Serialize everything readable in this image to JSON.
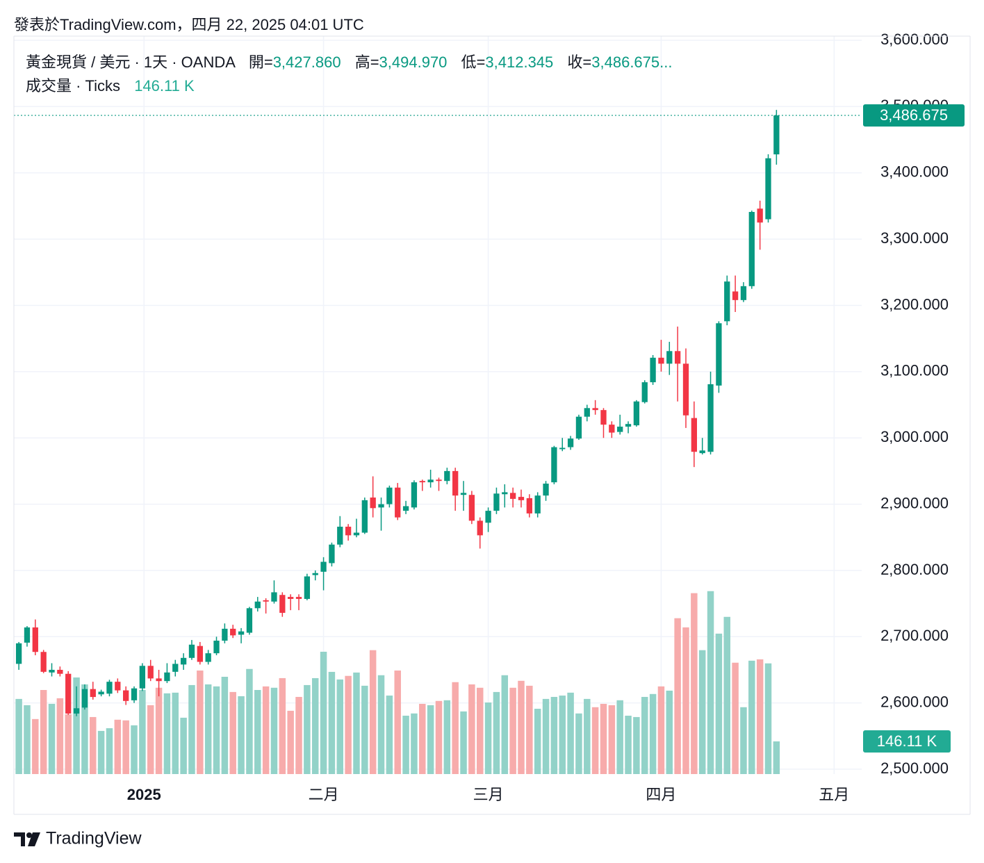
{
  "chart_data": {
    "type": "candlestick",
    "source": "發表於TradingView.com，四月 22, 2025 04:01 UTC",
    "symbol": "黃金現貨 / 美元 · 1天 · OANDA",
    "legend": {
      "open": {
        "name": "開=",
        "label": "3,427.860"
      },
      "high": {
        "name": "高=",
        "label": "3,494.970"
      },
      "low": {
        "name": "低=",
        "label": "3,412.345"
      },
      "close": {
        "name": "收=",
        "label": "3,486.675..."
      }
    },
    "volume_name": "成交量 · Ticks",
    "volume_label": "146.11 K",
    "close_label": "3,486.675",
    "brand": "TradingView",
    "up_color": "#089981",
    "down_color": "#f23645",
    "up_volume_color": "#92d2c8",
    "down_volume_color": "#f7abab",
    "open": [
      2659,
      2691,
      2714,
      2677,
      2646,
      2650,
      2644,
      2584,
      2593,
      2621,
      2613,
      2614,
      2632,
      2619,
      2604,
      2622,
      2656,
      2637,
      2633,
      2647,
      2658,
      2668,
      2686,
      2662,
      2675,
      2694,
      2712,
      2703,
      2706,
      2743,
      2755,
      2753,
      2763,
      2760,
      2760,
      2757,
      2793,
      2798,
      2811,
      2839,
      2866,
      2853,
      2857,
      2910,
      2895,
      2900,
      2925,
      2890,
      2895,
      2935,
      2933,
      2937,
      2935,
      2950,
      2914,
      2914,
      2875,
      2872,
      2890,
      2915,
      2917,
      2911,
      2909,
      2886,
      2913,
      2933,
      2983,
      2986,
      2999,
      3032,
      3045,
      3042,
      3020,
      3009,
      3017,
      3019,
      3054,
      3084,
      3121,
      3112,
      3131,
      3112,
      3030,
      2977,
      2979,
      3079,
      3176,
      3221,
      3208,
      3229,
      3346,
      3330,
      3427.86
    ],
    "high": [
      2692,
      2716,
      2726,
      2680,
      2660,
      2655,
      2648,
      2625,
      2628,
      2632,
      2620,
      2635,
      2637,
      2625,
      2625,
      2660,
      2665,
      2650,
      2660,
      2665,
      2675,
      2695,
      2692,
      2680,
      2700,
      2720,
      2718,
      2713,
      2745,
      2760,
      2758,
      2785,
      2767,
      2764,
      2764,
      2795,
      2800,
      2820,
      2842,
      2882,
      2870,
      2878,
      2910,
      2942,
      2910,
      2928,
      2932,
      2905,
      2936,
      2937,
      2952,
      2940,
      2955,
      2955,
      2935,
      2920,
      2880,
      2895,
      2925,
      2930,
      2925,
      2922,
      2915,
      2918,
      2935,
      2988,
      3000,
      3003,
      3035,
      3050,
      3057,
      3045,
      3025,
      3035,
      3025,
      3057,
      3087,
      3125,
      3148,
      3145,
      3168,
      3135,
      3055,
      3000,
      3100,
      3176,
      3245,
      3245,
      3235,
      3343,
      3358,
      3428,
      3494.97
    ],
    "low": [
      2650,
      2685,
      2672,
      2645,
      2640,
      2640,
      2582,
      2580,
      2590,
      2605,
      2610,
      2610,
      2615,
      2597,
      2600,
      2618,
      2633,
      2610,
      2630,
      2640,
      2650,
      2665,
      2658,
      2658,
      2672,
      2690,
      2698,
      2690,
      2703,
      2738,
      2735,
      2750,
      2730,
      2740,
      2740,
      2755,
      2785,
      2770,
      2806,
      2835,
      2845,
      2850,
      2855,
      2880,
      2860,
      2895,
      2876,
      2885,
      2892,
      2920,
      2925,
      2920,
      2930,
      2890,
      2890,
      2870,
      2833,
      2858,
      2885,
      2895,
      2895,
      2895,
      2880,
      2880,
      2905,
      2930,
      2980,
      2982,
      2997,
      3025,
      3035,
      3000,
      3000,
      3005,
      3007,
      3017,
      3052,
      3080,
      3100,
      3095,
      3055,
      3015,
      2956,
      2975,
      2975,
      3068,
      3170,
      3190,
      3205,
      3225,
      3284,
      3325,
      3412.345
    ],
    "close": [
      2690,
      2714,
      2677,
      2647,
      2650,
      2644,
      2584,
      2592,
      2621,
      2609,
      2617,
      2632,
      2619,
      2603,
      2622,
      2656,
      2637,
      2633,
      2646,
      2659,
      2668,
      2688,
      2662,
      2675,
      2694,
      2712,
      2702,
      2708,
      2743,
      2753,
      2753,
      2767,
      2736,
      2757,
      2757,
      2791,
      2796,
      2813,
      2839,
      2866,
      2853,
      2857,
      2906,
      2894,
      2900,
      2925,
      2880,
      2897,
      2933,
      2933,
      2937,
      2935,
      2950,
      2913,
      2917,
      2875,
      2853,
      2890,
      2916,
      2918,
      2908,
      2906,
      2886,
      2913,
      2931,
      2986,
      2985,
      2999,
      3032,
      3045,
      3042,
      3020,
      3008,
      3017,
      3021,
      3055,
      3084,
      3121,
      3112,
      3131,
      3112,
      3034,
      2979,
      2981,
      3081,
      3173,
      3236,
      3208,
      3229,
      3341,
      3325,
      3422,
      3486.675
    ],
    "volume": [
      336,
      308,
      246,
      376,
      314,
      339,
      267,
      432,
      401,
      255,
      193,
      205,
      243,
      240,
      218,
      376,
      308,
      386,
      361,
      364,
      252,
      398,
      463,
      401,
      392,
      435,
      367,
      348,
      470,
      376,
      392,
      386,
      429,
      283,
      345,
      398,
      429,
      547,
      457,
      423,
      439,
      454,
      395,
      554,
      442,
      351,
      463,
      261,
      271,
      314,
      308,
      327,
      330,
      411,
      280,
      401,
      386,
      320,
      367,
      442,
      386,
      417,
      395,
      292,
      336,
      345,
      351,
      364,
      271,
      336,
      299,
      314,
      308,
      330,
      261,
      255,
      345,
      358,
      392,
      373,
      697,
      656,
      809,
      554,
      818,
      628,
      703,
      498,
      299,
      507,
      513,
      495,
      146.11
    ],
    "xlim": [
      -0.6,
      102.35
    ],
    "xticks": [
      {
        "value": 15.2,
        "label": "2025"
      },
      {
        "value": 37,
        "label": "二月"
      },
      {
        "value": 57,
        "label": "三月"
      },
      {
        "value": 78,
        "label": "四月"
      },
      {
        "value": 99,
        "label": "五月"
      }
    ],
    "ylim": [
      2492.7,
      3606.3
    ],
    "yticks": [
      {
        "value": 2500,
        "label": "2,500.000"
      },
      {
        "value": 2600,
        "label": "2,600.000"
      },
      {
        "value": 2700,
        "label": "2,700.000"
      },
      {
        "value": 2800,
        "label": "2,800.000"
      },
      {
        "value": 2900,
        "label": "2,900.000"
      },
      {
        "value": 3000,
        "label": "3,000.000"
      },
      {
        "value": 3100,
        "label": "3,100.000"
      },
      {
        "value": 3200,
        "label": "3,200.000"
      },
      {
        "value": 3300,
        "label": "3,300.000"
      },
      {
        "value": 3400,
        "label": "3,400.000"
      },
      {
        "value": 3500,
        "label": "3,500.000"
      },
      {
        "value": 3600,
        "label": "3,600.000"
      }
    ],
    "volume_ylim": [
      0,
      3300
    ],
    "grid": true
  }
}
